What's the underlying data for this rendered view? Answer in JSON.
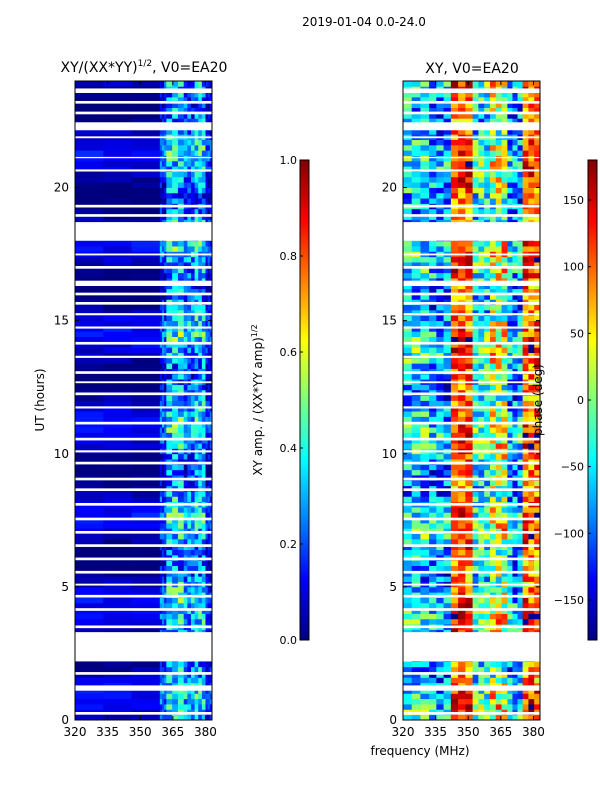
{
  "figure": {
    "suptitle": "2019-01-04 0.0-24.0",
    "xlabel": "frequency (MHz)"
  },
  "colors": {
    "frame": "#000000",
    "gap": "#ffffff",
    "jet": [
      "#00007f",
      "#0000ff",
      "#007fff",
      "#00ffff",
      "#7fff7f",
      "#ffff00",
      "#ff7f00",
      "#ff0000",
      "#7f0000"
    ]
  },
  "chart_data": [
    {
      "type": "heatmap",
      "title_main": "XY/(XX*YY)",
      "title_sup": "1/2",
      "title_rest": ", V0=EA20",
      "ylabel": "UT (hours)",
      "xlim": [
        320,
        383
      ],
      "ylim": [
        0,
        24
      ],
      "xticks": [
        320,
        335,
        350,
        365,
        380
      ],
      "yticks": [
        0,
        5,
        10,
        15,
        20
      ],
      "colorbar": {
        "label_main": "XY amp. / (XX*YY amp)",
        "label_sup": "1/2",
        "range": [
          0,
          1
        ],
        "ticks": [
          "0.0",
          "0.2",
          "0.4",
          "0.6",
          "0.8",
          "1.0"
        ],
        "tick_values": [
          0,
          0.2,
          0.4,
          0.6,
          0.8,
          1.0
        ]
      },
      "bands_MHz": [
        {
          "from": 320,
          "to": 359,
          "level": 0.05,
          "spread": 0.04
        },
        {
          "from": 359,
          "to": 362,
          "level": 0.15,
          "spread": 0.12
        },
        {
          "from": 362,
          "to": 370,
          "level": 0.32,
          "spread": 0.2
        },
        {
          "from": 370,
          "to": 375,
          "level": 0.25,
          "spread": 0.15
        },
        {
          "from": 375,
          "to": 380,
          "level": 0.3,
          "spread": 0.18
        },
        {
          "from": 380,
          "to": 383,
          "level": 0.12,
          "spread": 0.1
        }
      ]
    },
    {
      "type": "heatmap",
      "title_main": "XY, V0=EA20",
      "ylabel": "phase (deg)",
      "xlim": [
        320,
        383
      ],
      "ylim": [
        0,
        24
      ],
      "xticks": [
        320,
        335,
        350,
        365,
        380
      ],
      "yticks": [
        0,
        5,
        10,
        15,
        20
      ],
      "colorbar": {
        "label_main": "phase (deg)",
        "range": [
          -180,
          180
        ],
        "ticks": [
          "−150",
          "−100",
          "−50",
          "0",
          "50",
          "100",
          "150"
        ],
        "tick_values": [
          -150,
          -100,
          -50,
          0,
          50,
          100,
          150
        ]
      },
      "bands_MHz": [
        {
          "from": 320,
          "to": 332,
          "level": 0.35,
          "spread": 0.2
        },
        {
          "from": 332,
          "to": 342,
          "level": 0.28,
          "spread": 0.2
        },
        {
          "from": 342,
          "to": 352,
          "level": 0.8,
          "spread": 0.15
        },
        {
          "from": 352,
          "to": 360,
          "level": 0.4,
          "spread": 0.2
        },
        {
          "from": 360,
          "to": 368,
          "level": 0.55,
          "spread": 0.25
        },
        {
          "from": 368,
          "to": 375,
          "level": 0.3,
          "spread": 0.2
        },
        {
          "from": 375,
          "to": 383,
          "level": 0.78,
          "spread": 0.18
        }
      ]
    }
  ],
  "ut_gaps_hours": [
    [
      23.55,
      23.72
    ],
    [
      23.15,
      23.25
    ],
    [
      22.75,
      22.85
    ],
    [
      22.15,
      22.45
    ],
    [
      21.85,
      21.92
    ],
    [
      21.1,
      21.15
    ],
    [
      20.6,
      20.68
    ],
    [
      19.25,
      19.35
    ],
    [
      18.9,
      19.0
    ],
    [
      18.0,
      18.7
    ],
    [
      17.45,
      17.52
    ],
    [
      16.95,
      17.05
    ],
    [
      16.3,
      16.5
    ],
    [
      15.95,
      16.05
    ],
    [
      15.6,
      15.7
    ],
    [
      15.2,
      15.28
    ],
    [
      14.7,
      14.78
    ],
    [
      14.1,
      14.2
    ],
    [
      13.6,
      13.68
    ],
    [
      13.0,
      13.1
    ],
    [
      12.65,
      12.72
    ],
    [
      12.2,
      12.3
    ],
    [
      11.7,
      11.78
    ],
    [
      11.1,
      11.2
    ],
    [
      10.5,
      10.6
    ],
    [
      10.05,
      10.13
    ],
    [
      9.6,
      9.7
    ],
    [
      9.0,
      9.1
    ],
    [
      8.6,
      8.7
    ],
    [
      8.05,
      8.15
    ],
    [
      7.5,
      7.6
    ],
    [
      7.0,
      7.1
    ],
    [
      6.5,
      6.6
    ],
    [
      6.0,
      6.1
    ],
    [
      5.5,
      5.6
    ],
    [
      5.05,
      5.12
    ],
    [
      4.6,
      4.7
    ],
    [
      4.1,
      4.2
    ],
    [
      3.45,
      3.55
    ],
    [
      2.2,
      3.3
    ],
    [
      1.7,
      1.8
    ],
    [
      1.1,
      1.3
    ],
    [
      0.2,
      0.3
    ]
  ]
}
